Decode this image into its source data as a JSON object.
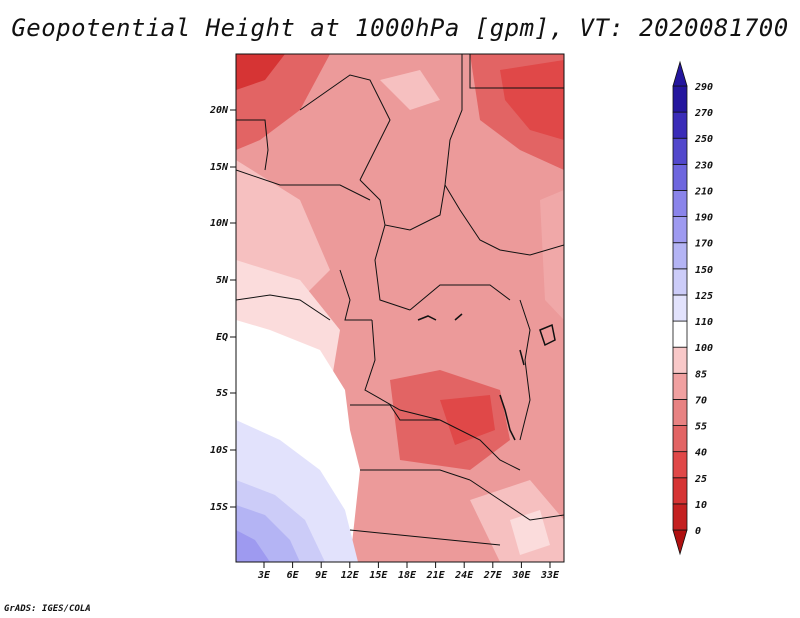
{
  "title": "Geopotential Height at 1000hPa [gpm], VT: 2020081700",
  "credit": "GrADS: IGES/COLA",
  "map": {
    "lat_labels": [
      "20N",
      "15N",
      "10N",
      "5N",
      "EQ",
      "5S",
      "10S",
      "15S"
    ],
    "lon_labels": [
      "3E",
      "6E",
      "9E",
      "12E",
      "15E",
      "18E",
      "21E",
      "24E",
      "27E",
      "30E",
      "33E"
    ]
  },
  "colorbar": {
    "levels": [
      "0",
      "10",
      "25",
      "40",
      "55",
      "70",
      "85",
      "100",
      "110",
      "125",
      "150",
      "170",
      "190",
      "210",
      "230",
      "250",
      "270",
      "290"
    ],
    "colors": [
      "#b01010",
      "#c42020",
      "#d63434",
      "#e04848",
      "#e26464",
      "#e88282",
      "#f0a0a0",
      "#f8c8c8",
      "#ffffff",
      "#e2e2fc",
      "#ccccf8",
      "#b4b4f4",
      "#9e9af0",
      "#8a84ea",
      "#6e66de",
      "#5248cc",
      "#3a2cb8",
      "#24169e"
    ]
  }
}
